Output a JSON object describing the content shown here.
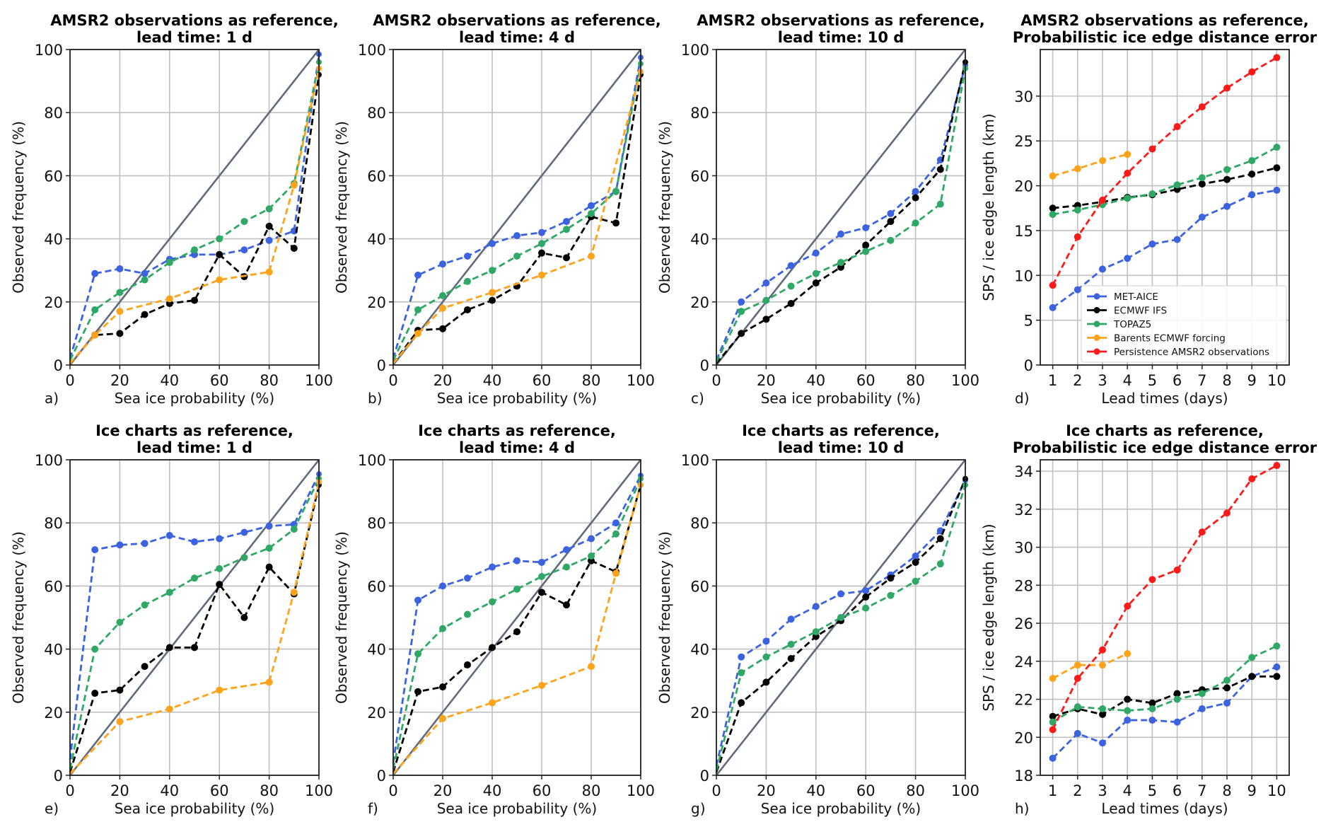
{
  "colors": {
    "MET-AICE": "#3b63e0",
    "ECMWF IFS": "#000000",
    "TOPAZ5": "#2fa866",
    "Barents ECMWF forcing": "#ffa31a",
    "Persistence AMSR2 observations": "#ff1a1a",
    "diagonal": "#5f6b7a",
    "grid": "#c0c0c0"
  },
  "chart_data": [
    {
      "id": "a",
      "letter": "a)",
      "type": "line",
      "title": [
        "AMSR2 observations as reference,",
        "lead time: 1 d"
      ],
      "xlabel": "Sea ice probability (%)",
      "ylabel": "Observed frequency (%)",
      "xlim": [
        0,
        100
      ],
      "ylim": [
        0,
        100
      ],
      "xticks": [
        0,
        20,
        40,
        60,
        80,
        100
      ],
      "yticks": [
        0,
        20,
        40,
        60,
        80,
        100
      ],
      "diagonal": true,
      "grid": true,
      "x": [
        0,
        10,
        20,
        30,
        40,
        50,
        60,
        70,
        80,
        90,
        100
      ],
      "series": [
        {
          "name": "MET-AICE",
          "values": [
            2,
            29,
            30.5,
            29,
            33.5,
            35,
            35,
            36.5,
            39.5,
            42.5,
            98.5
          ]
        },
        {
          "name": "ECMWF IFS",
          "values": [
            0.5,
            9.5,
            10,
            16,
            19.5,
            20.5,
            35,
            28,
            44,
            37,
            92
          ]
        },
        {
          "name": "TOPAZ5",
          "values": [
            1.5,
            17.5,
            23,
            27,
            32.5,
            36.5,
            40,
            45.5,
            49.5,
            57.5,
            96
          ]
        },
        {
          "name": "Barents ECMWF forcing",
          "values": [
            0.5,
            9.5,
            17,
            null,
            21,
            null,
            27,
            null,
            29.5,
            57,
            94
          ]
        }
      ]
    },
    {
      "id": "b",
      "letter": "b)",
      "type": "line",
      "title": [
        "AMSR2 observations as reference,",
        "lead time: 4 d"
      ],
      "xlabel": "Sea ice probability (%)",
      "ylabel": "Observed frequency (%)",
      "xlim": [
        0,
        100
      ],
      "ylim": [
        0,
        100
      ],
      "xticks": [
        0,
        20,
        40,
        60,
        80,
        100
      ],
      "yticks": [
        0,
        20,
        40,
        60,
        80,
        100
      ],
      "diagonal": true,
      "grid": true,
      "x": [
        0,
        10,
        20,
        30,
        40,
        50,
        60,
        70,
        80,
        90,
        100
      ],
      "series": [
        {
          "name": "MET-AICE",
          "values": [
            2,
            28.5,
            32,
            34.5,
            38.5,
            41,
            42,
            45.5,
            50.5,
            55,
            97.5
          ]
        },
        {
          "name": "ECMWF IFS",
          "values": [
            0.5,
            11,
            11.5,
            17.5,
            20.5,
            25,
            35.5,
            34,
            47,
            45,
            92
          ]
        },
        {
          "name": "TOPAZ5",
          "values": [
            1.5,
            17.5,
            22,
            26.5,
            30,
            34.5,
            38.5,
            43,
            48,
            55,
            95.5
          ]
        },
        {
          "name": "Barents ECMWF forcing",
          "values": [
            0.5,
            10,
            18,
            null,
            23,
            null,
            28.5,
            null,
            34.5,
            null,
            93
          ]
        }
      ]
    },
    {
      "id": "c",
      "letter": "c)",
      "type": "line",
      "title": [
        "AMSR2 observations as reference,",
        "lead time: 10 d"
      ],
      "xlabel": "Sea ice probability (%)",
      "ylabel": "Observed frequency (%)",
      "xlim": [
        0,
        100
      ],
      "ylim": [
        0,
        100
      ],
      "xticks": [
        0,
        20,
        40,
        60,
        80,
        100
      ],
      "yticks": [
        0,
        20,
        40,
        60,
        80,
        100
      ],
      "diagonal": true,
      "grid": true,
      "x": [
        0,
        10,
        20,
        30,
        40,
        50,
        60,
        70,
        80,
        90,
        100
      ],
      "series": [
        {
          "name": "MET-AICE",
          "values": [
            1.5,
            20,
            26,
            31.5,
            35.5,
            41.5,
            43.5,
            48,
            55,
            65,
            95
          ]
        },
        {
          "name": "ECMWF IFS",
          "values": [
            0.5,
            10,
            14.5,
            19.5,
            26,
            31,
            38,
            45.5,
            53,
            62,
            96
          ]
        },
        {
          "name": "TOPAZ5",
          "values": [
            1,
            17,
            20.5,
            25,
            29,
            32.5,
            36,
            39.5,
            45,
            51,
            94
          ]
        }
      ]
    },
    {
      "id": "d",
      "letter": "d)",
      "type": "line",
      "title": [
        "AMSR2 observations as reference,",
        "Probabilistic ice edge distance error"
      ],
      "xlabel": "Lead times (days)",
      "ylabel": "SPS / ice edge length (km)",
      "xlim": [
        0.5,
        10.5
      ],
      "ylim": [
        0,
        35.2
      ],
      "xticks": [
        1,
        2,
        3,
        4,
        5,
        6,
        7,
        8,
        9,
        10
      ],
      "yticks": [
        0,
        5,
        10,
        15,
        20,
        25,
        30
      ],
      "diagonal": false,
      "grid": true,
      "legend": "lower-right",
      "x": [
        1,
        2,
        3,
        4,
        5,
        6,
        7,
        8,
        9,
        10
      ],
      "series": [
        {
          "name": "MET-AICE",
          "values": [
            6.4,
            8.4,
            10.7,
            11.9,
            13.5,
            14.0,
            16.5,
            17.7,
            19.0,
            19.5
          ]
        },
        {
          "name": "ECMWF IFS",
          "values": [
            17.5,
            17.8,
            18.2,
            18.7,
            19.0,
            19.6,
            20.2,
            20.7,
            21.3,
            22.0
          ]
        },
        {
          "name": "TOPAZ5",
          "values": [
            16.8,
            17.3,
            17.9,
            18.6,
            19.1,
            20.1,
            20.9,
            21.8,
            22.8,
            24.3
          ]
        },
        {
          "name": "Barents ECMWF forcing",
          "values": [
            21.1,
            21.9,
            22.8,
            23.5,
            null,
            null,
            null,
            null,
            null,
            null
          ]
        },
        {
          "name": "Persistence AMSR2 observations",
          "values": [
            8.9,
            14.3,
            18.4,
            21.4,
            24.1,
            26.6,
            28.8,
            30.9,
            32.7,
            34.3
          ]
        }
      ]
    },
    {
      "id": "e",
      "letter": "e)",
      "type": "line",
      "title": [
        "Ice charts as reference,",
        "lead time: 1 d"
      ],
      "xlabel": "Sea ice probability (%)",
      "ylabel": "Observed frequency (%)",
      "xlim": [
        0,
        100
      ],
      "ylim": [
        0,
        100
      ],
      "xticks": [
        0,
        20,
        40,
        60,
        80,
        100
      ],
      "yticks": [
        0,
        20,
        40,
        60,
        80,
        100
      ],
      "diagonal": true,
      "grid": true,
      "x": [
        0,
        10,
        20,
        30,
        40,
        50,
        60,
        70,
        80,
        90,
        100
      ],
      "series": [
        {
          "name": "MET-AICE",
          "values": [
            5,
            71.5,
            73,
            73.5,
            76,
            74,
            75,
            77,
            79,
            79.5,
            95.5
          ]
        },
        {
          "name": "ECMWF IFS",
          "values": [
            1,
            26,
            27,
            34.5,
            40.5,
            40.5,
            60.5,
            50,
            66,
            57.5,
            92
          ]
        },
        {
          "name": "TOPAZ5",
          "values": [
            2,
            40,
            48.5,
            54,
            58,
            62.5,
            65.5,
            69,
            72,
            78,
            94
          ]
        },
        {
          "name": "Barents ECMWF forcing",
          "values": [
            0.5,
            null,
            17,
            null,
            21,
            null,
            27,
            null,
            29.5,
            58,
            93
          ]
        }
      ]
    },
    {
      "id": "f",
      "letter": "f)",
      "type": "line",
      "title": [
        "Ice charts as reference,",
        "lead time: 4 d"
      ],
      "xlabel": "Sea ice probability (%)",
      "ylabel": "Observed frequency (%)",
      "xlim": [
        0,
        100
      ],
      "ylim": [
        0,
        100
      ],
      "xticks": [
        0,
        20,
        40,
        60,
        80,
        100
      ],
      "yticks": [
        0,
        20,
        40,
        60,
        80,
        100
      ],
      "diagonal": true,
      "grid": true,
      "x": [
        0,
        10,
        20,
        30,
        40,
        50,
        60,
        70,
        80,
        90,
        100
      ],
      "series": [
        {
          "name": "MET-AICE",
          "values": [
            4,
            55.5,
            60,
            62.5,
            66,
            68,
            67.5,
            71.5,
            75,
            80,
            95
          ]
        },
        {
          "name": "ECMWF IFS",
          "values": [
            1,
            26.5,
            28,
            35,
            40.5,
            45.5,
            58,
            54,
            68,
            64.5,
            92
          ]
        },
        {
          "name": "TOPAZ5",
          "values": [
            2,
            38.5,
            46.5,
            51,
            55,
            59,
            63,
            66,
            69.5,
            76.5,
            94
          ]
        },
        {
          "name": "Barents ECMWF forcing",
          "values": [
            0.5,
            null,
            18,
            null,
            23,
            null,
            28.5,
            null,
            34.5,
            64,
            92
          ]
        }
      ]
    },
    {
      "id": "g",
      "letter": "g)",
      "type": "line",
      "title": [
        "Ice charts as reference,",
        "lead time: 10 d"
      ],
      "xlabel": "Sea ice probability (%)",
      "ylabel": "Observed frequency (%)",
      "xlim": [
        0,
        100
      ],
      "ylim": [
        0,
        100
      ],
      "xticks": [
        0,
        20,
        40,
        60,
        80,
        100
      ],
      "yticks": [
        0,
        20,
        40,
        60,
        80,
        100
      ],
      "diagonal": true,
      "grid": true,
      "x": [
        0,
        10,
        20,
        30,
        40,
        50,
        60,
        70,
        80,
        90,
        100
      ],
      "series": [
        {
          "name": "MET-AICE",
          "values": [
            3,
            37.5,
            42.5,
            49.5,
            53.5,
            57.5,
            58.5,
            63.5,
            69.5,
            77.5,
            93.5
          ]
        },
        {
          "name": "ECMWF IFS",
          "values": [
            1,
            23,
            29.5,
            37,
            44,
            49,
            56.5,
            62.5,
            67.5,
            75,
            94
          ]
        },
        {
          "name": "TOPAZ5",
          "values": [
            1.5,
            32.5,
            37.5,
            41.5,
            45.5,
            50,
            53,
            57,
            61.5,
            67,
            92
          ]
        }
      ]
    },
    {
      "id": "h",
      "letter": "h)",
      "type": "line",
      "title": [
        "Ice charts as reference,",
        "Probabilistic ice edge distance error"
      ],
      "xlabel": "Lead times (days)",
      "ylabel": "SPS / ice edge length (km)",
      "xlim": [
        0.5,
        10.5
      ],
      "ylim": [
        18,
        34.6
      ],
      "xticks": [
        1,
        2,
        3,
        4,
        5,
        6,
        7,
        8,
        9,
        10
      ],
      "yticks": [
        18,
        20,
        22,
        24,
        26,
        28,
        30,
        32,
        34
      ],
      "diagonal": false,
      "grid": true,
      "x": [
        1,
        2,
        3,
        4,
        5,
        6,
        7,
        8,
        9,
        10
      ],
      "series": [
        {
          "name": "MET-AICE",
          "values": [
            18.9,
            20.2,
            19.7,
            20.9,
            20.9,
            20.8,
            21.5,
            21.8,
            23.2,
            23.7
          ]
        },
        {
          "name": "ECMWF IFS",
          "values": [
            21.1,
            21.5,
            21.2,
            22.0,
            21.8,
            22.3,
            22.5,
            22.6,
            23.2,
            23.2
          ]
        },
        {
          "name": "TOPAZ5",
          "values": [
            20.8,
            21.6,
            21.5,
            21.4,
            21.5,
            22.0,
            22.3,
            23.0,
            24.2,
            24.8
          ]
        },
        {
          "name": "Barents ECMWF forcing",
          "values": [
            23.1,
            23.8,
            23.8,
            24.4,
            null,
            null,
            null,
            null,
            null,
            null
          ]
        },
        {
          "name": "Persistence AMSR2 observations",
          "values": [
            20.4,
            23.1,
            24.6,
            26.9,
            28.3,
            28.8,
            30.8,
            31.8,
            33.6,
            34.3
          ]
        }
      ]
    }
  ],
  "legend": {
    "entries": [
      "MET-AICE",
      "ECMWF IFS",
      "TOPAZ5",
      "Barents ECMWF forcing",
      "Persistence AMSR2 observations"
    ]
  }
}
